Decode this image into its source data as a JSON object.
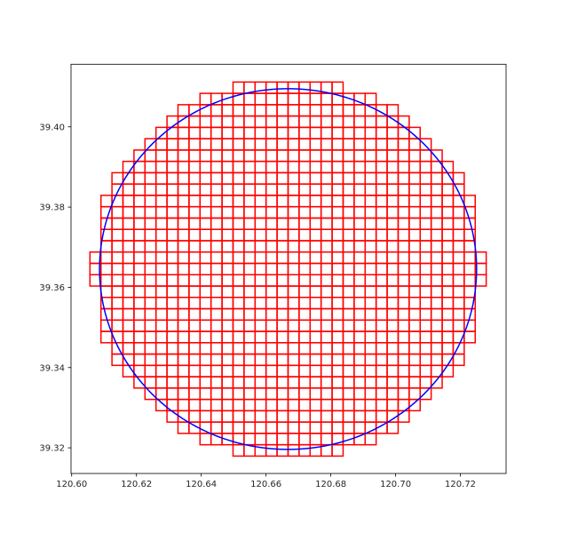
{
  "chart_data": {
    "type": "grid-cells-with-circle",
    "title": "",
    "xlabel": "",
    "ylabel": "",
    "xlim": [
      120.5998,
      120.7341
    ],
    "ylim": [
      39.3136,
      39.4156
    ],
    "xticks": [
      120.6,
      120.62,
      120.64,
      120.66,
      120.68,
      120.7,
      120.72
    ],
    "xtick_labels": [
      "120.60",
      "120.62",
      "120.64",
      "120.66",
      "120.68",
      "120.70",
      "120.72"
    ],
    "yticks": [
      39.32,
      39.34,
      39.36,
      39.38,
      39.4
    ],
    "ytick_labels": [
      "39.32",
      "39.34",
      "39.36",
      "39.38",
      "39.40"
    ],
    "grid": false,
    "cell_lon_width": 0.003398,
    "cell_color": "#ff0000",
    "circle_color": "#0000ff",
    "circle": {
      "center_lon": 120.6668,
      "center_lat": 39.36455,
      "radius_lon": 0.0582,
      "radius_lat": 0.04495
    },
    "cell_rows": [
      {
        "lat_max": 39.41116,
        "lat_min": 39.40834,
        "lon_min": 120.64981,
        "lon_max": 120.68379
      },
      {
        "lat_max": 39.40834,
        "lat_min": 39.40551,
        "lon_min": 120.63962,
        "lon_max": 120.69399
      },
      {
        "lat_max": 39.40551,
        "lat_min": 39.40269,
        "lon_min": 120.63282,
        "lon_max": 120.70078
      },
      {
        "lat_max": 39.40269,
        "lat_min": 39.39986,
        "lon_min": 120.62943,
        "lon_max": 120.70418
      },
      {
        "lat_max": 39.39986,
        "lat_min": 39.39704,
        "lon_min": 120.62603,
        "lon_max": 120.70758
      },
      {
        "lat_max": 39.39704,
        "lat_min": 39.39421,
        "lon_min": 120.62263,
        "lon_max": 120.71098
      },
      {
        "lat_max": 39.39421,
        "lat_min": 39.39139,
        "lon_min": 120.61923,
        "lon_max": 120.71437
      },
      {
        "lat_max": 39.39139,
        "lat_min": 39.38856,
        "lon_min": 120.61583,
        "lon_max": 120.71777
      },
      {
        "lat_max": 39.38856,
        "lat_min": 39.38574,
        "lon_min": 120.61244,
        "lon_max": 120.72117
      },
      {
        "lat_max": 39.38574,
        "lat_min": 39.38291,
        "lon_min": 120.61244,
        "lon_max": 120.72117
      },
      {
        "lat_max": 39.38291,
        "lat_min": 39.38009,
        "lon_min": 120.60904,
        "lon_max": 120.72457
      },
      {
        "lat_max": 39.38009,
        "lat_min": 39.37726,
        "lon_min": 120.60904,
        "lon_max": 120.72457
      },
      {
        "lat_max": 39.37726,
        "lat_min": 39.37444,
        "lon_min": 120.60904,
        "lon_max": 120.72457
      },
      {
        "lat_max": 39.37444,
        "lat_min": 39.37161,
        "lon_min": 120.60904,
        "lon_max": 120.72457
      },
      {
        "lat_max": 39.37161,
        "lat_min": 39.36879,
        "lon_min": 120.60904,
        "lon_max": 120.72457
      },
      {
        "lat_max": 39.36879,
        "lat_min": 39.36596,
        "lon_min": 120.60564,
        "lon_max": 120.72797
      },
      {
        "lat_max": 39.36596,
        "lat_min": 39.36314,
        "lon_min": 120.60564,
        "lon_max": 120.72797
      },
      {
        "lat_max": 39.36314,
        "lat_min": 39.36031,
        "lon_min": 120.60564,
        "lon_max": 120.72797
      },
      {
        "lat_max": 39.36031,
        "lat_min": 39.35749,
        "lon_min": 120.60904,
        "lon_max": 120.72457
      },
      {
        "lat_max": 39.35749,
        "lat_min": 39.35466,
        "lon_min": 120.60904,
        "lon_max": 120.72457
      },
      {
        "lat_max": 39.35466,
        "lat_min": 39.35184,
        "lon_min": 120.60904,
        "lon_max": 120.72457
      },
      {
        "lat_max": 39.35184,
        "lat_min": 39.34901,
        "lon_min": 120.60904,
        "lon_max": 120.72457
      },
      {
        "lat_max": 39.34901,
        "lat_min": 39.34619,
        "lon_min": 120.60904,
        "lon_max": 120.72457
      },
      {
        "lat_max": 39.34619,
        "lat_min": 39.34336,
        "lon_min": 120.61244,
        "lon_max": 120.72117
      },
      {
        "lat_max": 39.34336,
        "lat_min": 39.34054,
        "lon_min": 120.61244,
        "lon_max": 120.72117
      },
      {
        "lat_max": 39.34054,
        "lat_min": 39.33771,
        "lon_min": 120.61583,
        "lon_max": 120.71777
      },
      {
        "lat_max": 39.33771,
        "lat_min": 39.33489,
        "lon_min": 120.61923,
        "lon_max": 120.71437
      },
      {
        "lat_max": 39.33489,
        "lat_min": 39.33206,
        "lon_min": 120.62263,
        "lon_max": 120.71098
      },
      {
        "lat_max": 39.33206,
        "lat_min": 39.32924,
        "lon_min": 120.62603,
        "lon_max": 120.70758
      },
      {
        "lat_max": 39.32924,
        "lat_min": 39.32641,
        "lon_min": 120.62943,
        "lon_max": 120.70418
      },
      {
        "lat_max": 39.32641,
        "lat_min": 39.32359,
        "lon_min": 120.63282,
        "lon_max": 120.70078
      },
      {
        "lat_max": 39.32359,
        "lat_min": 39.32076,
        "lon_min": 120.63962,
        "lon_max": 120.69399
      },
      {
        "lat_max": 39.32076,
        "lat_min": 39.31794,
        "lon_min": 120.64981,
        "lon_max": 120.68379
      }
    ]
  }
}
